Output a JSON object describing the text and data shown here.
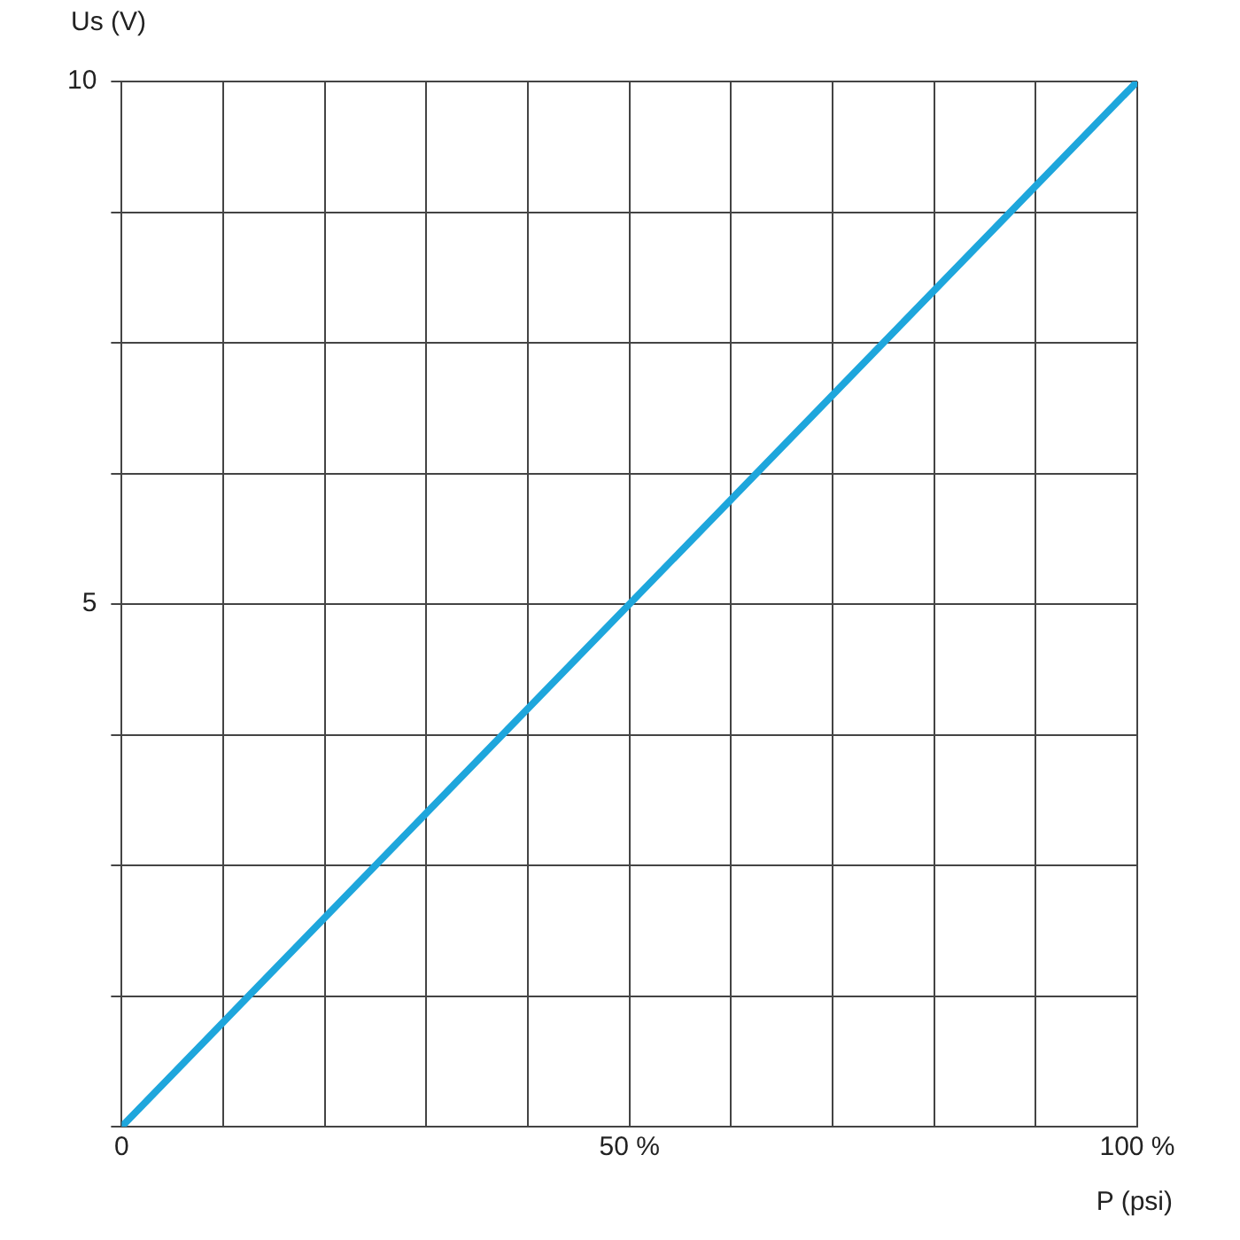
{
  "chart_data": {
    "type": "line",
    "xlabel": "P (psi)",
    "ylabel": "Us (V)",
    "x": [
      0,
      100
    ],
    "series": [
      {
        "color": "#1ea6dc",
        "values": [
          0,
          10
        ]
      }
    ],
    "xlim": [
      0,
      100
    ],
    "ylim": [
      0,
      10
    ],
    "xticks": [
      0,
      {
        "value": 10,
        "label": null
      },
      {
        "value": 20,
        "label": null
      },
      {
        "value": 30,
        "label": null
      },
      {
        "value": 40,
        "label": null
      },
      {
        "value": 50,
        "label": "50 %"
      },
      {
        "value": 60,
        "label": null
      },
      {
        "value": 70,
        "label": null
      },
      {
        "value": 80,
        "label": null
      },
      {
        "value": 90,
        "label": null
      },
      {
        "value": 100,
        "label": "100 %"
      }
    ],
    "yticks": [
      {
        "value": 0,
        "label": null
      },
      {
        "value": 1.25,
        "label": null
      },
      {
        "value": 2.5,
        "label": null
      },
      {
        "value": 3.75,
        "label": null
      },
      5,
      {
        "value": 6.25,
        "label": null
      },
      {
        "value": 7.5,
        "label": null
      },
      {
        "value": 8.75,
        "label": null
      },
      10
    ],
    "grid": true,
    "legend": false,
    "marker": "none",
    "line_style": "solid"
  }
}
